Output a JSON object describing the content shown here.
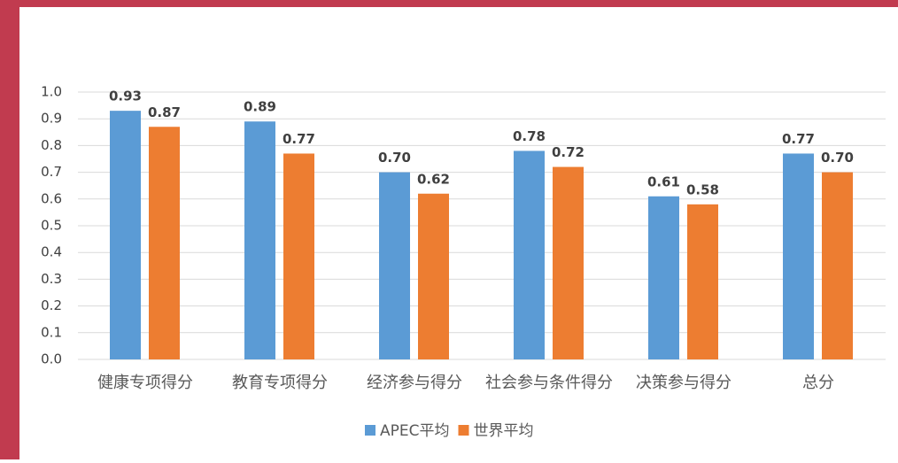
{
  "chart_data": {
    "type": "bar",
    "categories": [
      "健康专项得分",
      "教育专项得分",
      "经济参与得分",
      "社会参与条件得分",
      "决策参与得分",
      "总分"
    ],
    "series": [
      {
        "name": "APEC平均",
        "color": "#5b9bd5",
        "values": [
          0.93,
          0.89,
          0.7,
          0.78,
          0.61,
          0.77
        ],
        "value_labels": [
          "0.93",
          "0.89",
          "0.70",
          "0.78",
          "0.61",
          "0.77"
        ]
      },
      {
        "name": "世界平均",
        "color": "#ed7d31",
        "values": [
          0.87,
          0.77,
          0.62,
          0.72,
          0.58,
          0.7
        ],
        "value_labels": [
          "0.87",
          "0.77",
          "0.62",
          "0.72",
          "0.58",
          "0.70"
        ]
      }
    ],
    "ylim": [
      0,
      1
    ],
    "yticks": [
      {
        "value": 0,
        "label": "0.0"
      },
      0.1,
      0.2,
      0.3,
      0.4,
      0.5,
      0.6,
      0.7,
      0.8,
      0.9,
      {
        "value": 1,
        "label": "1.0"
      }
    ],
    "grid": true,
    "legend": "bottom"
  }
}
